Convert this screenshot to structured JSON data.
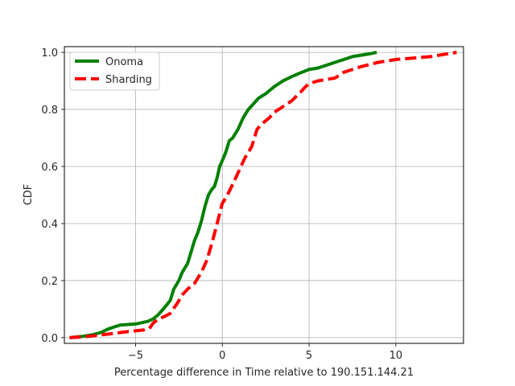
{
  "chart_data": {
    "type": "line",
    "title": "",
    "xlabel": "Percentage difference in Time relative to 190.151.144.21",
    "ylabel": "CDF",
    "xlim": [
      -9.1,
      13.9
    ],
    "ylim": [
      -0.02,
      1.02
    ],
    "x_ticks": [
      -5,
      0,
      5,
      10
    ],
    "x_tick_labels": [
      "−5",
      "0",
      "5",
      "10"
    ],
    "y_ticks": [
      0.0,
      0.2,
      0.4,
      0.6,
      0.8,
      1.0
    ],
    "y_tick_labels": [
      "0.0",
      "0.2",
      "0.4",
      "0.6",
      "0.8",
      "1.0"
    ],
    "grid": true,
    "legend": "top-left",
    "series": [
      {
        "name": "Onoma",
        "color": "#008000",
        "style": "solid",
        "x": [
          -8.8,
          -8.0,
          -7.5,
          -7.0,
          -6.6,
          -6.2,
          -5.9,
          -5.5,
          -5.0,
          -4.6,
          -4.3,
          -4.0,
          -3.7,
          -3.4,
          -3.0,
          -2.8,
          -2.5,
          -2.3,
          -2.0,
          -1.8,
          -1.6,
          -1.4,
          -1.2,
          -1.0,
          -0.8,
          -0.6,
          -0.45,
          -0.3,
          -0.15,
          0.0,
          0.2,
          0.4,
          0.6,
          0.9,
          1.2,
          1.5,
          1.8,
          2.1,
          2.5,
          3.0,
          3.5,
          4.0,
          4.5,
          5.0,
          5.5,
          6.0,
          6.5,
          7.0,
          7.5,
          8.0,
          8.5,
          8.9
        ],
        "y": [
          0.0,
          0.005,
          0.01,
          0.018,
          0.03,
          0.038,
          0.044,
          0.046,
          0.048,
          0.053,
          0.057,
          0.065,
          0.08,
          0.1,
          0.13,
          0.17,
          0.2,
          0.23,
          0.26,
          0.3,
          0.34,
          0.37,
          0.41,
          0.46,
          0.5,
          0.52,
          0.53,
          0.56,
          0.6,
          0.62,
          0.65,
          0.69,
          0.7,
          0.73,
          0.77,
          0.8,
          0.82,
          0.84,
          0.855,
          0.88,
          0.9,
          0.915,
          0.928,
          0.94,
          0.945,
          0.955,
          0.965,
          0.975,
          0.985,
          0.99,
          0.995,
          1.0
        ],
        "line_width": 4
      },
      {
        "name": "Sharding",
        "color": "#ff0000",
        "style": "dashed",
        "x": [
          -8.8,
          -8.0,
          -7.5,
          -7.0,
          -6.5,
          -6.0,
          -5.5,
          -5.0,
          -4.5,
          -4.2,
          -4.0,
          -3.7,
          -3.3,
          -3.0,
          -2.6,
          -2.3,
          -2.0,
          -1.6,
          -1.2,
          -0.9,
          -0.6,
          -0.3,
          0.0,
          0.3,
          0.7,
          1.0,
          1.3,
          1.7,
          2.0,
          2.3,
          2.7,
          3.0,
          3.5,
          4.0,
          4.5,
          4.8,
          5.0,
          5.5,
          6.0,
          6.5,
          7.0,
          7.5,
          8.0,
          9.0,
          10.0,
          11.0,
          12.0,
          13.5
        ],
        "y": [
          0.0,
          0.003,
          0.006,
          0.01,
          0.013,
          0.017,
          0.021,
          0.024,
          0.027,
          0.032,
          0.05,
          0.065,
          0.075,
          0.085,
          0.12,
          0.15,
          0.17,
          0.19,
          0.23,
          0.27,
          0.33,
          0.4,
          0.47,
          0.5,
          0.55,
          0.59,
          0.63,
          0.67,
          0.73,
          0.75,
          0.77,
          0.79,
          0.81,
          0.83,
          0.86,
          0.88,
          0.89,
          0.9,
          0.905,
          0.91,
          0.93,
          0.94,
          0.95,
          0.965,
          0.975,
          0.98,
          0.985,
          1.0
        ],
        "line_width": 4
      }
    ]
  }
}
